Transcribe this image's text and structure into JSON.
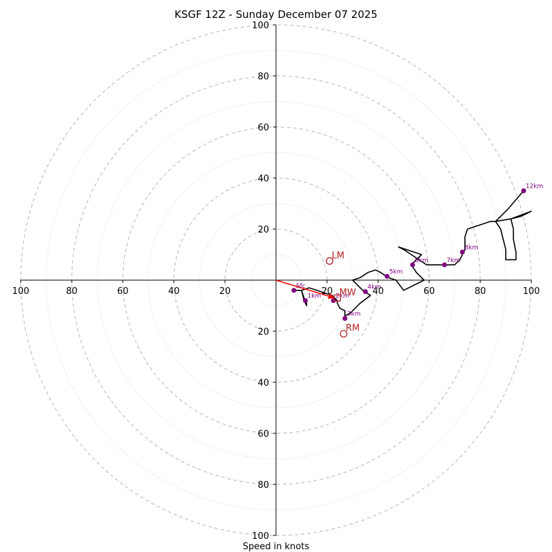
{
  "chart_data": {
    "type": "hodograph",
    "title": "KSGF 12Z - Sunday December 07 2025",
    "xlabel": "Speed in knots",
    "units": "knots",
    "range": [
      -100,
      100
    ],
    "ring_major_step": 20,
    "ring_minor_step": 10,
    "x_tick_labels": [
      "100",
      "80",
      "60",
      "40",
      "20",
      "20",
      "40",
      "60",
      "80",
      "100"
    ],
    "x_tick_values": [
      -100,
      -80,
      -60,
      -40,
      -20,
      20,
      40,
      60,
      80,
      100
    ],
    "y_tick_labels": [
      "100",
      "80",
      "60",
      "40",
      "20",
      "20",
      "40",
      "60",
      "80",
      "100"
    ],
    "y_tick_values": [
      100,
      80,
      60,
      40,
      20,
      -20,
      -40,
      -60,
      -80,
      -100
    ],
    "trace_uv": [
      [
        7,
        -4
      ],
      [
        10,
        -4
      ],
      [
        11,
        -8
      ],
      [
        12,
        -10
      ],
      [
        12,
        -9
      ],
      [
        11,
        -7
      ],
      [
        10,
        -4
      ],
      [
        13,
        -3
      ],
      [
        16,
        -4
      ],
      [
        19,
        -5
      ],
      [
        22,
        -6
      ],
      [
        24,
        -8
      ],
      [
        24,
        -9
      ],
      [
        25,
        -11
      ],
      [
        27,
        -12
      ],
      [
        27,
        -14
      ],
      [
        29,
        -13
      ],
      [
        31,
        -11
      ],
      [
        33,
        -9
      ],
      [
        37,
        -6
      ],
      [
        34,
        -4
      ],
      [
        30,
        0
      ],
      [
        33,
        1
      ],
      [
        36,
        3
      ],
      [
        39,
        4
      ],
      [
        41,
        3
      ],
      [
        44,
        1
      ],
      [
        47,
        0
      ],
      [
        50,
        -4
      ],
      [
        58,
        0
      ],
      [
        55,
        3
      ],
      [
        53,
        6
      ],
      [
        57,
        10
      ],
      [
        54,
        11
      ],
      [
        51,
        12
      ],
      [
        48,
        13
      ],
      [
        50,
        12
      ],
      [
        53,
        10
      ],
      [
        56,
        8
      ],
      [
        59,
        6
      ],
      [
        63,
        6
      ],
      [
        65,
        6
      ],
      [
        70,
        6
      ],
      [
        72,
        8
      ],
      [
        74,
        12
      ],
      [
        74,
        15
      ],
      [
        74,
        17
      ],
      [
        75,
        20
      ],
      [
        78,
        21
      ],
      [
        81,
        22
      ],
      [
        84,
        23
      ],
      [
        85,
        23
      ],
      [
        86,
        23
      ],
      [
        92,
        24
      ],
      [
        96,
        25
      ],
      [
        100,
        27
      ],
      [
        92,
        24
      ],
      [
        93,
        20
      ],
      [
        93,
        16
      ],
      [
        94,
        11
      ],
      [
        94,
        8
      ],
      [
        90,
        8
      ],
      [
        90,
        12
      ],
      [
        89,
        16
      ],
      [
        88,
        20
      ],
      [
        86,
        23
      ],
      [
        91,
        28
      ],
      [
        97,
        35
      ]
    ],
    "height_points": [
      {
        "label": "Sfc",
        "u": 7,
        "v": -4
      },
      {
        "label": "1km",
        "u": 11.5,
        "v": -8
      },
      {
        "label": "2km",
        "u": 22.5,
        "v": -8
      },
      {
        "label": "3km",
        "u": 27,
        "v": -15
      },
      {
        "label": "4km",
        "u": 35,
        "v": -4.5
      },
      {
        "label": "5km",
        "u": 43.5,
        "v": 1.5
      },
      {
        "label": "6km",
        "u": 53.5,
        "v": 6
      },
      {
        "label": "7km",
        "u": 66,
        "v": 6
      },
      {
        "label": "8km",
        "u": 73,
        "v": 11
      },
      {
        "label": "12km",
        "u": 97,
        "v": 35
      }
    ],
    "markers": [
      {
        "label": "LM",
        "u": 21,
        "v": 7.5,
        "shape": "circle"
      },
      {
        "label": "RM",
        "u": 26.5,
        "v": -21,
        "shape": "circle"
      },
      {
        "label": "MW",
        "u": 24,
        "v": -7,
        "shape": "square"
      }
    ],
    "mean_wind_vector": {
      "u": 23,
      "v": -7
    },
    "colors": {
      "trace": "#000000",
      "height_points": "#800080",
      "markers": "#b22222",
      "vector": "#ff0000",
      "grid": "#c0c0c0",
      "axes": "#000000"
    }
  }
}
